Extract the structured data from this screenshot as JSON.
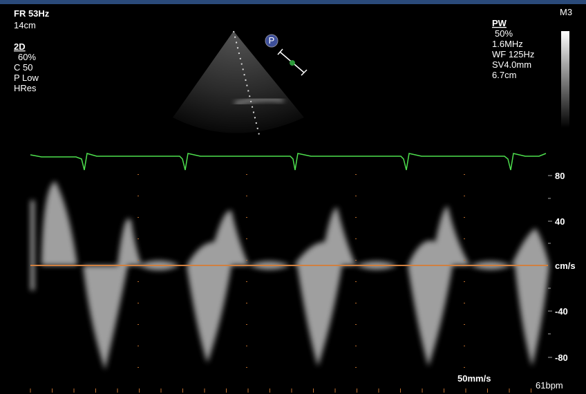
{
  "left_panel": {
    "frame_rate": "FR 53Hz",
    "depth": "14cm",
    "mode": "2D",
    "gain": "60%",
    "compression": "C 50",
    "power": "P Low",
    "resolution": "HRes"
  },
  "right_panel": {
    "mode": "PW",
    "gain": "50%",
    "frequency": "1.6MHz",
    "wall_filter": "WF 125Hz",
    "sample_volume": "SV4.0mm",
    "depth": "6.7cm"
  },
  "map_label": "M3",
  "probe_marker": "P",
  "velocity_scale": {
    "labels": [
      "80",
      "40",
      "cm/s",
      "-40",
      "-80"
    ]
  },
  "sweep_speed": "50mm/s",
  "heart_rate": "61bpm"
}
